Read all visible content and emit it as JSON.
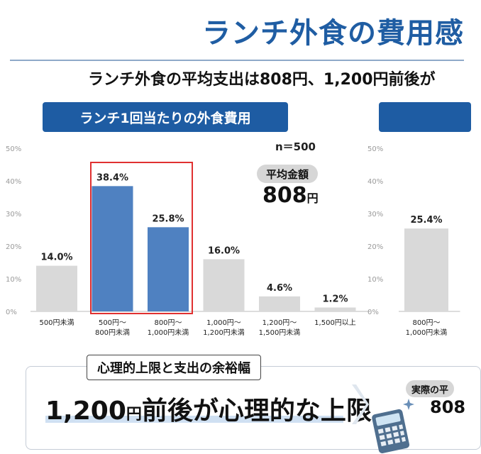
{
  "header": {
    "title": "ランチ外食の費用感",
    "subtitle": "ランチ外食の平均支出は808円、1,200円前後が"
  },
  "chart1": {
    "header": "ランチ1回当たりの外食費用",
    "sample_size": "n＝500",
    "avg_label": "平均金額",
    "avg_value": "808",
    "avg_unit": "円"
  },
  "chart2": {
    "header": ""
  },
  "bottom": {
    "label": "心理的上限と支出の余裕幅",
    "main_text": "1,200",
    "main_yen": "円",
    "main_suffix": "前後が心理的な上限",
    "actual_label": "実際の平",
    "actual_value": "808"
  },
  "colors": {
    "accent": "#1e5ca3",
    "bar_highlight": "#4f81c1",
    "bar_normal": "#d9d9d9",
    "highlight_border": "#e03030"
  },
  "icons": [
    "chevron-right-icon",
    "calculator-icon",
    "sparkle-icon"
  ],
  "chart_data": [
    {
      "type": "bar",
      "title": "ランチ1回当たりの外食費用",
      "categories": [
        [
          "500円未満"
        ],
        [
          "500円～",
          "800円未満"
        ],
        [
          "800円～",
          "1,000円未満"
        ],
        [
          "1,000円～",
          "1,200円未満"
        ],
        [
          "1,200円～",
          "1,500円未満"
        ],
        [
          "1,500円以上"
        ]
      ],
      "values": [
        14.0,
        38.4,
        25.8,
        16.0,
        4.6,
        1.2
      ],
      "value_labels": [
        "14.0%",
        "38.4%",
        "25.8%",
        "16.0%",
        "4.6%",
        "1.2%"
      ],
      "highlighted": [
        false,
        true,
        true,
        false,
        false,
        false
      ],
      "yticks": [
        "0%",
        "10%",
        "20%",
        "30%",
        "40%",
        "50%"
      ],
      "ylim": [
        0,
        50
      ],
      "grid": false
    },
    {
      "type": "bar",
      "categories": [
        [
          "800円～",
          "1,000円未満"
        ]
      ],
      "values": [
        25.4
      ],
      "value_labels": [
        "25.4%"
      ],
      "highlighted": [
        false
      ],
      "yticks": [
        "0%",
        "10%",
        "20%",
        "30%",
        "40%",
        "50%"
      ],
      "ylim": [
        0,
        50
      ],
      "grid": false
    }
  ]
}
